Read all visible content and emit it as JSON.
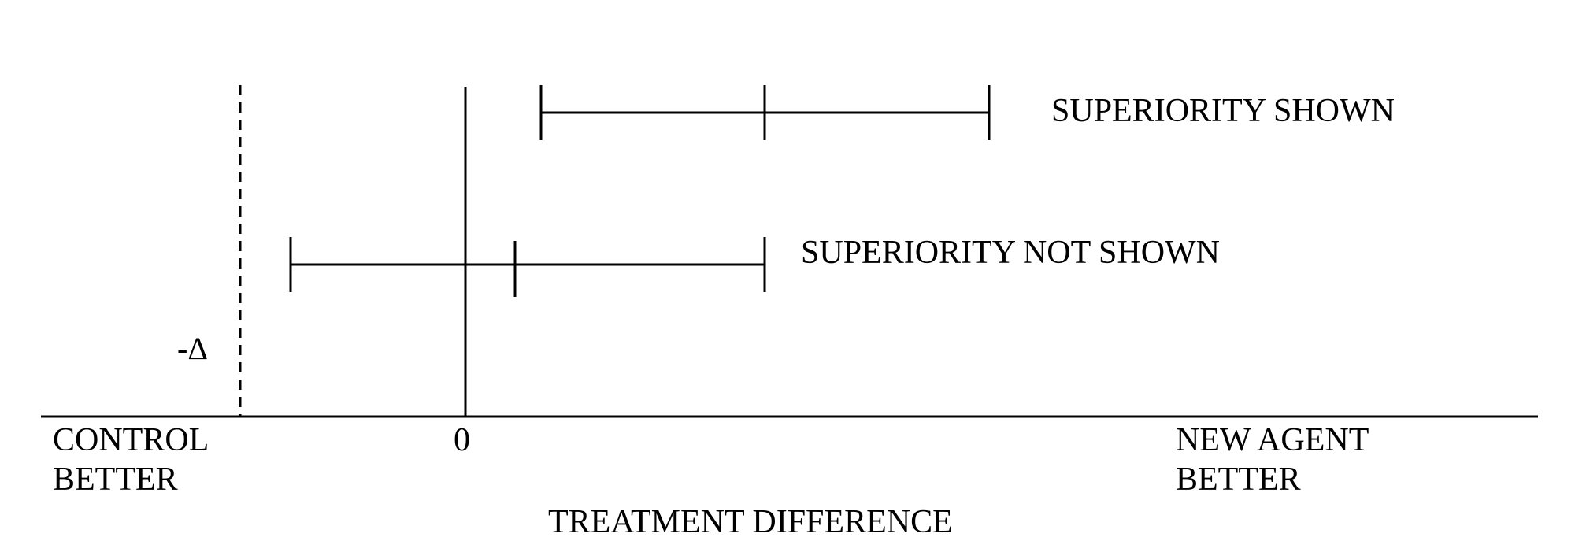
{
  "labels": {
    "superiority_shown": "SUPERIORITY SHOWN",
    "superiority_not_shown": "SUPERIORITY NOT SHOWN",
    "margin": "-Δ",
    "zero": "0",
    "control_better_line1": "CONTROL",
    "control_better_line2": "BETTER",
    "new_agent_better_line1": "NEW AGENT",
    "new_agent_better_line2": "BETTER",
    "x_axis": "TREATMENT DIFFERENCE"
  },
  "colors": {
    "ink": "#000000",
    "background": "#ffffff"
  }
}
